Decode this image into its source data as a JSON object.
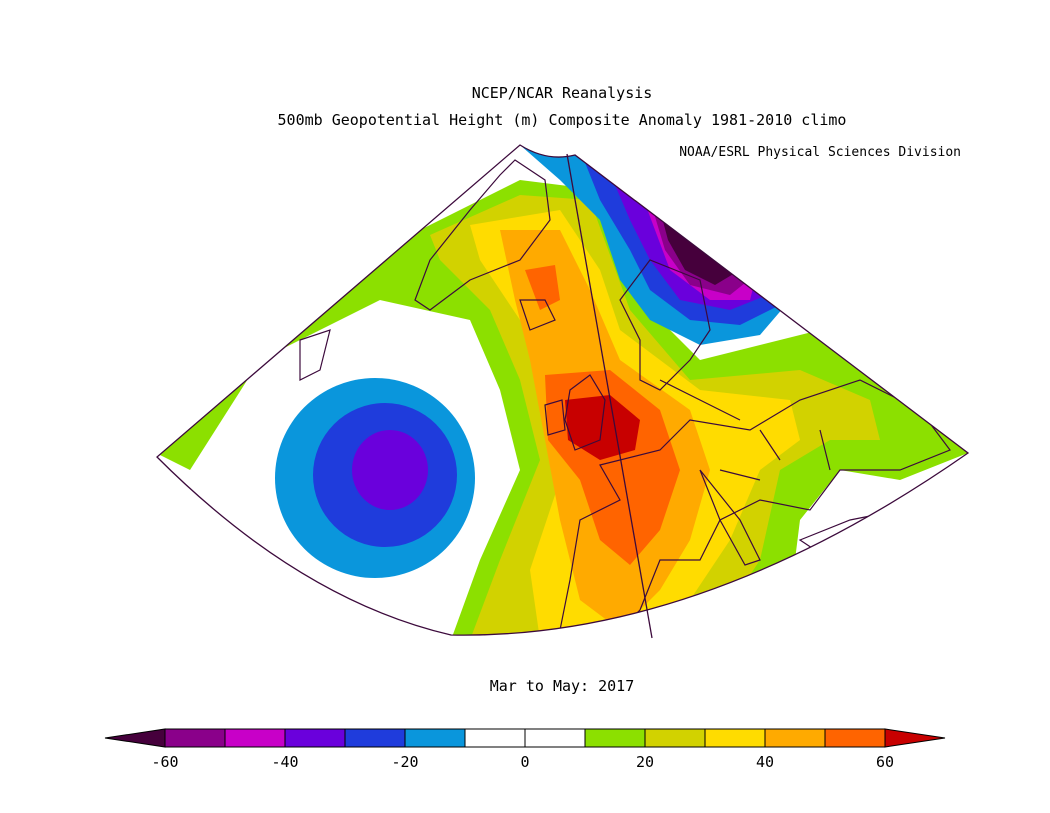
{
  "header": {
    "title_line1": "NCEP/NCAR Reanalysis",
    "title_line2": "500mb Geopotential Height (m) Composite Anomaly 1981-2010 climo",
    "credit": "NOAA/ESRL Physical Sciences Division"
  },
  "map": {
    "period_label": "Mar to May: 2017",
    "region": "North Atlantic / Europe",
    "features": [
      {
        "name": "negative-anomaly-north-atlantic",
        "sign": "negative",
        "peak_value": -40
      },
      {
        "name": "negative-anomaly-scandinavia",
        "sign": "negative",
        "peak_value": -60
      },
      {
        "name": "positive-anomaly-western-europe",
        "sign": "positive",
        "peak_value": 60
      },
      {
        "name": "positive-anomaly-iceland",
        "sign": "positive",
        "peak_value": 50
      }
    ]
  },
  "colorbar": {
    "levels": [
      -60,
      -50,
      -40,
      -30,
      -20,
      -10,
      0,
      10,
      20,
      30,
      40,
      50,
      60
    ],
    "colors": [
      "#8a008a",
      "#c800c8",
      "#6a00dc",
      "#1f3cdc",
      "#0a96dc",
      "#ffffff",
      "#ffffff",
      "#8ce000",
      "#d2d200",
      "#ffdc00",
      "#ffaa00",
      "#ff6400"
    ],
    "below_color": "#46003c",
    "above_color": "#c80000",
    "tick_labels": [
      "-60",
      "-40",
      "-20",
      "0",
      "20",
      "40",
      "60"
    ]
  }
}
